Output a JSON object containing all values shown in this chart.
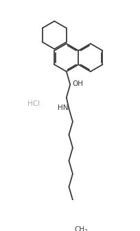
{
  "background_color": "#ffffff",
  "line_color": "#3a3a3a",
  "label_color": "#3a3a3a",
  "figsize": [
    2.04,
    3.36
  ],
  "dpi": 100,
  "bond_width": 1.3,
  "hcl_text": "HCl",
  "oh_text": "OH",
  "hn_text": "HN",
  "ch3_text": "CH₃",
  "hcl_color": "#aaaaaa"
}
